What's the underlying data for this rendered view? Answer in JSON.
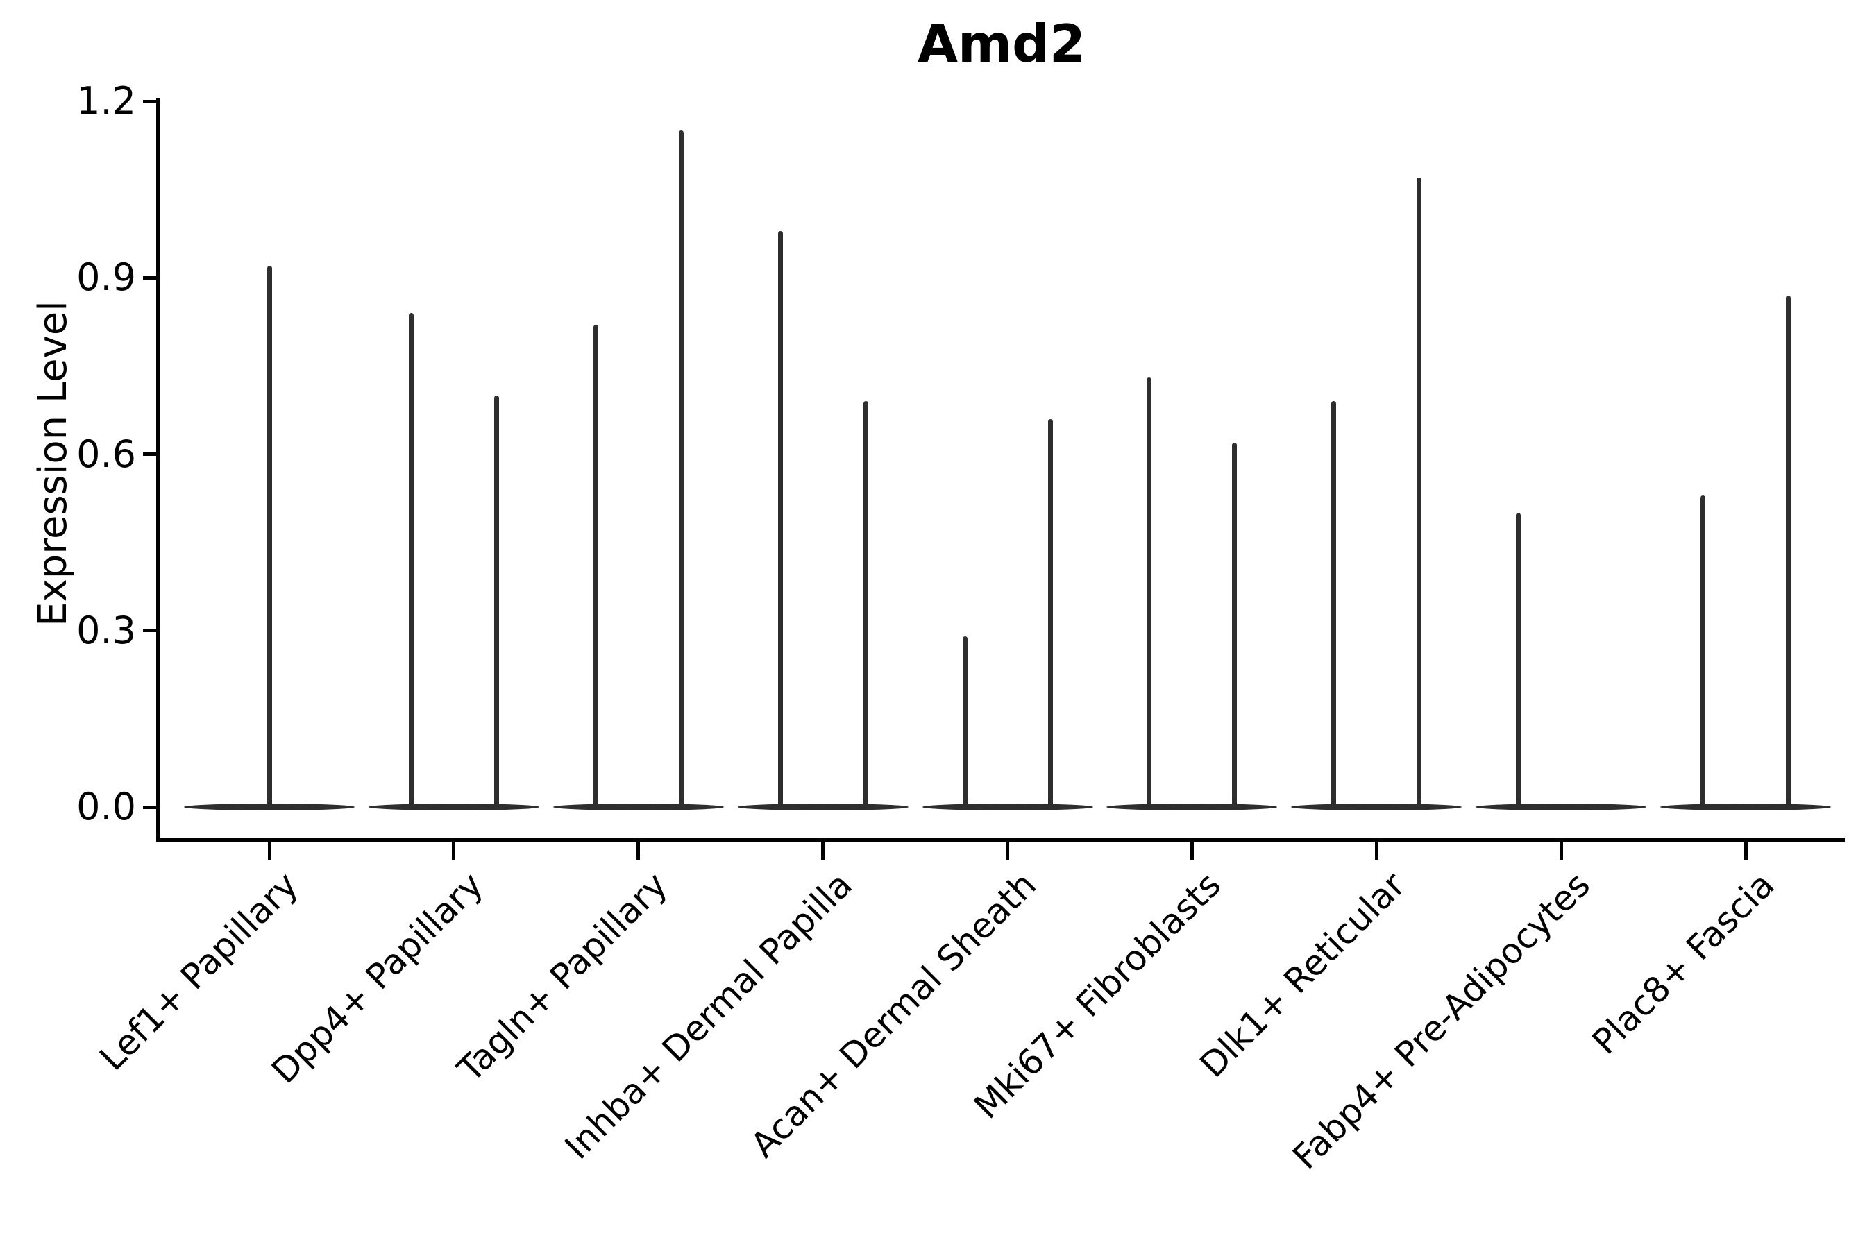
{
  "figure": {
    "background": "#ffffff"
  },
  "chart_data": {
    "type": "violin",
    "title": "Amd2",
    "xlabel": "",
    "ylabel": "Expression Level",
    "ylim": [
      0,
      1.2
    ],
    "yticks": [
      0.0,
      0.3,
      0.6,
      0.9,
      1.2
    ],
    "ytick_labels": [
      "0.0",
      "0.3",
      "0.6",
      "0.9",
      "1.2"
    ],
    "grid": false,
    "legend_position": "none",
    "categories": [
      "Lef1+ Papillary",
      "Dpp4+ Papillary",
      "Tagln+ Papillary",
      "Inhba+ Dermal Papilla",
      "Acan+ Dermal Sheath",
      "Mki67+ Fibroblasts",
      "Dlk1+ Reticular",
      "Fabp4+ Pre-Adipocytes",
      "Plac8+ Fascia"
    ],
    "violins": [
      {
        "category": "Lef1+ Papillary",
        "spikes": [
          {
            "position": "center",
            "max": 0.92
          }
        ]
      },
      {
        "category": "Dpp4+ Papillary",
        "spikes": [
          {
            "position": "left",
            "max": 0.84
          },
          {
            "position": "right",
            "max": 0.7
          }
        ]
      },
      {
        "category": "Tagln+ Papillary",
        "spikes": [
          {
            "position": "left",
            "max": 0.82
          },
          {
            "position": "right",
            "max": 1.15
          }
        ]
      },
      {
        "category": "Inhba+ Dermal Papilla",
        "spikes": [
          {
            "position": "left",
            "max": 0.98
          },
          {
            "position": "right",
            "max": 0.69
          }
        ]
      },
      {
        "category": "Acan+ Dermal Sheath",
        "spikes": [
          {
            "position": "left",
            "max": 0.29
          },
          {
            "position": "right",
            "max": 0.66
          }
        ]
      },
      {
        "category": "Mki67+ Fibroblasts",
        "spikes": [
          {
            "position": "left",
            "max": 0.73
          },
          {
            "position": "right",
            "max": 0.62
          }
        ]
      },
      {
        "category": "Dlk1+ Reticular",
        "spikes": [
          {
            "position": "left",
            "max": 0.69
          },
          {
            "position": "right",
            "max": 1.07
          }
        ]
      },
      {
        "category": "Fabp4+ Pre-Adipocytes",
        "spikes": [
          {
            "position": "left",
            "max": 0.5
          }
        ]
      },
      {
        "category": "Plac8+ Fascia",
        "spikes": [
          {
            "position": "left",
            "max": 0.53
          },
          {
            "position": "right",
            "max": 0.87
          }
        ]
      }
    ],
    "colors": {
      "violin": "#2e2e2e",
      "axis": "#000000",
      "text": "#000000"
    }
  }
}
